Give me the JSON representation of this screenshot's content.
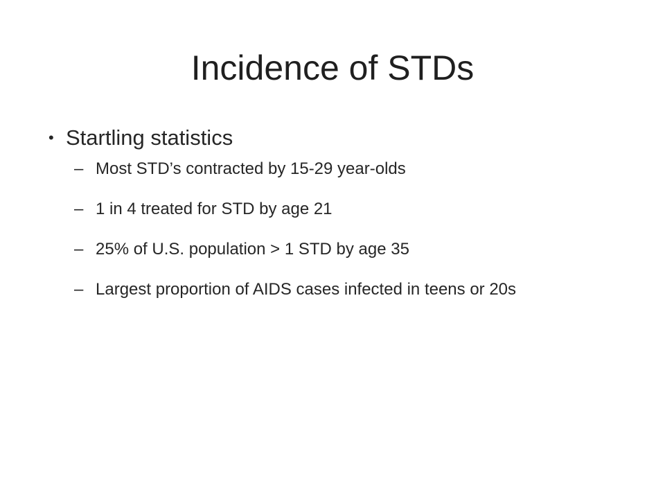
{
  "slide": {
    "title": "Incidence of STDs",
    "bullets": [
      {
        "marker": "•",
        "text": "Startling statistics",
        "sub": [
          {
            "marker": "–",
            "text": "Most STD’s contracted by 15-29 year-olds"
          },
          {
            "marker": "–",
            "text": "1 in 4 treated for STD by age 21"
          },
          {
            "marker": "–",
            "text": "25% of U.S. population > 1 STD by age 35"
          },
          {
            "marker": "–",
            "text": "Largest proportion of AIDS cases infected in teens or 20s"
          }
        ]
      }
    ]
  }
}
